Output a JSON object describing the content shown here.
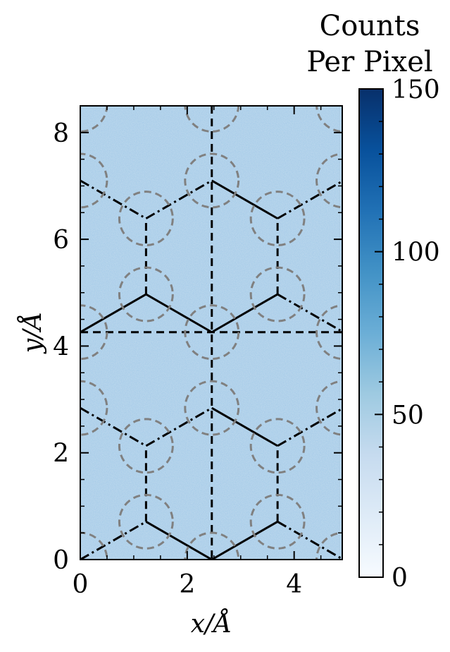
{
  "chart_data": {
    "type": "heatmap",
    "xlabel": "x/Å",
    "ylabel": "y/Å",
    "xlim": [
      0,
      4.9
    ],
    "ylim": [
      0,
      8.5
    ],
    "x_ticks": [
      0,
      2,
      4
    ],
    "y_ticks": [
      0,
      2,
      4,
      6,
      8
    ],
    "x_tick_labels": [
      "0",
      "2",
      "4"
    ],
    "y_tick_labels": [
      "0",
      "2",
      "4",
      "6",
      "8"
    ],
    "colorbar": {
      "title": [
        "Counts",
        "Per Pixel"
      ],
      "min": 0,
      "max": 150,
      "ticks": [
        0,
        50,
        100,
        150
      ],
      "tick_labels": [
        "0",
        "50",
        "100",
        "150"
      ],
      "colormap": "Blues"
    },
    "heatmap_level": 45,
    "dashed_lines": {
      "vertical_x": 2.46,
      "horizontal_y": 4.26
    },
    "circles": {
      "radius": 0.5,
      "color": "#808080",
      "centers": [
        [
          1.23,
          0.71
        ],
        [
          3.69,
          0.71
        ],
        [
          1.23,
          2.13
        ],
        [
          3.69,
          2.13
        ],
        [
          2.46,
          2.84
        ],
        [
          0.0,
          2.84
        ],
        [
          4.92,
          2.84
        ],
        [
          2.46,
          4.26
        ],
        [
          0.0,
          4.26
        ],
        [
          4.92,
          4.26
        ],
        [
          1.23,
          4.97
        ],
        [
          3.69,
          4.97
        ],
        [
          1.23,
          6.39
        ],
        [
          3.69,
          6.39
        ],
        [
          2.46,
          7.1
        ],
        [
          0.0,
          7.1
        ],
        [
          4.92,
          7.1
        ],
        [
          2.46,
          8.52
        ],
        [
          0.0,
          8.52
        ],
        [
          4.92,
          8.52
        ],
        [
          2.46,
          0.0
        ],
        [
          0.0,
          0.0
        ],
        [
          4.92,
          0.0
        ]
      ]
    },
    "network_segments": [
      {
        "style": "dashdot",
        "points": [
          [
            0.0,
            0.0
          ],
          [
            1.23,
            0.71
          ]
        ]
      },
      {
        "style": "solid",
        "points": [
          [
            1.23,
            0.71
          ],
          [
            2.46,
            0.0
          ]
        ]
      },
      {
        "style": "solid",
        "points": [
          [
            2.46,
            0.0
          ],
          [
            3.69,
            0.71
          ]
        ]
      },
      {
        "style": "dashdot",
        "points": [
          [
            3.69,
            0.71
          ],
          [
            4.92,
            0.0
          ]
        ]
      },
      {
        "style": "dashed",
        "points": [
          [
            1.23,
            0.71
          ],
          [
            1.23,
            2.13
          ]
        ]
      },
      {
        "style": "dashed",
        "points": [
          [
            3.69,
            0.71
          ],
          [
            3.69,
            2.13
          ]
        ]
      },
      {
        "style": "dashdot",
        "points": [
          [
            0.0,
            2.84
          ],
          [
            1.23,
            2.13
          ]
        ]
      },
      {
        "style": "dashdot",
        "points": [
          [
            1.23,
            2.13
          ],
          [
            2.46,
            2.84
          ]
        ]
      },
      {
        "style": "solid",
        "points": [
          [
            2.46,
            2.84
          ],
          [
            3.69,
            2.13
          ]
        ]
      },
      {
        "style": "dashdot",
        "points": [
          [
            3.69,
            2.13
          ],
          [
            4.92,
            2.84
          ]
        ]
      },
      {
        "style": "solid",
        "points": [
          [
            0.0,
            4.26
          ],
          [
            1.23,
            4.97
          ]
        ]
      },
      {
        "style": "solid",
        "points": [
          [
            1.23,
            4.97
          ],
          [
            2.46,
            4.26
          ]
        ]
      },
      {
        "style": "solid",
        "points": [
          [
            2.46,
            4.26
          ],
          [
            3.69,
            4.97
          ]
        ]
      },
      {
        "style": "dashdot",
        "points": [
          [
            3.69,
            4.97
          ],
          [
            4.92,
            4.26
          ]
        ]
      },
      {
        "style": "dashed",
        "points": [
          [
            1.23,
            4.97
          ],
          [
            1.23,
            6.39
          ]
        ]
      },
      {
        "style": "dashed",
        "points": [
          [
            3.69,
            4.97
          ],
          [
            3.69,
            6.39
          ]
        ]
      },
      {
        "style": "dashdot",
        "points": [
          [
            0.0,
            7.1
          ],
          [
            1.23,
            6.39
          ]
        ]
      },
      {
        "style": "dashdot",
        "points": [
          [
            1.23,
            6.39
          ],
          [
            2.46,
            7.1
          ]
        ]
      },
      {
        "style": "solid",
        "points": [
          [
            2.46,
            7.1
          ],
          [
            3.69,
            6.39
          ]
        ]
      },
      {
        "style": "dashdot",
        "points": [
          [
            3.69,
            6.39
          ],
          [
            4.92,
            7.1
          ]
        ]
      }
    ]
  }
}
